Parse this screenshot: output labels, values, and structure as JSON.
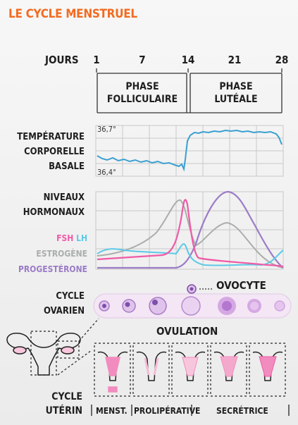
{
  "title": "LE CYCLE MENSTRUEL",
  "days_label": "JOURS",
  "days": [
    "1",
    "7",
    "14",
    "21",
    "28"
  ],
  "phases": {
    "follicular": [
      "PHASE",
      "FOLLICULAIRE"
    ],
    "luteal": [
      "PHASE",
      "LUTÉALE"
    ]
  },
  "temperature": {
    "label": [
      "TEMPÉRATURE",
      "CORPORELLE",
      "BASALE"
    ],
    "max": "36,7°",
    "min": "36,4°"
  },
  "hormones": {
    "label": [
      "NIVEAUX",
      "HORMONAUX"
    ],
    "fsh": "FSH",
    "lh": "LH",
    "estrogen": "ESTROGÈNE",
    "progesterone": "PROGESTÉRONE"
  },
  "ovarian": {
    "label": [
      "CYCLE",
      "OVARIEN"
    ],
    "oocyte": "OVOCYTE"
  },
  "ovulation": "OVULATION",
  "uterine": {
    "label": [
      "CYCLE",
      "UTÉRIN"
    ],
    "phases": [
      "MENST.",
      "PROLIPÉRATIVE",
      "SECRÉTRICE"
    ]
  },
  "colors": {
    "title": "#f26b21",
    "temperature": "#3a9fd1",
    "fsh": "#ef5aa7",
    "lh": "#5cc9e8",
    "estrogen": "#a9aeab",
    "progesterone": "#9b7cc7",
    "ovary_fill": "#d6b7e2",
    "ovary_core": "#8e62b8",
    "uterus_lining": "#f28cbe"
  }
}
